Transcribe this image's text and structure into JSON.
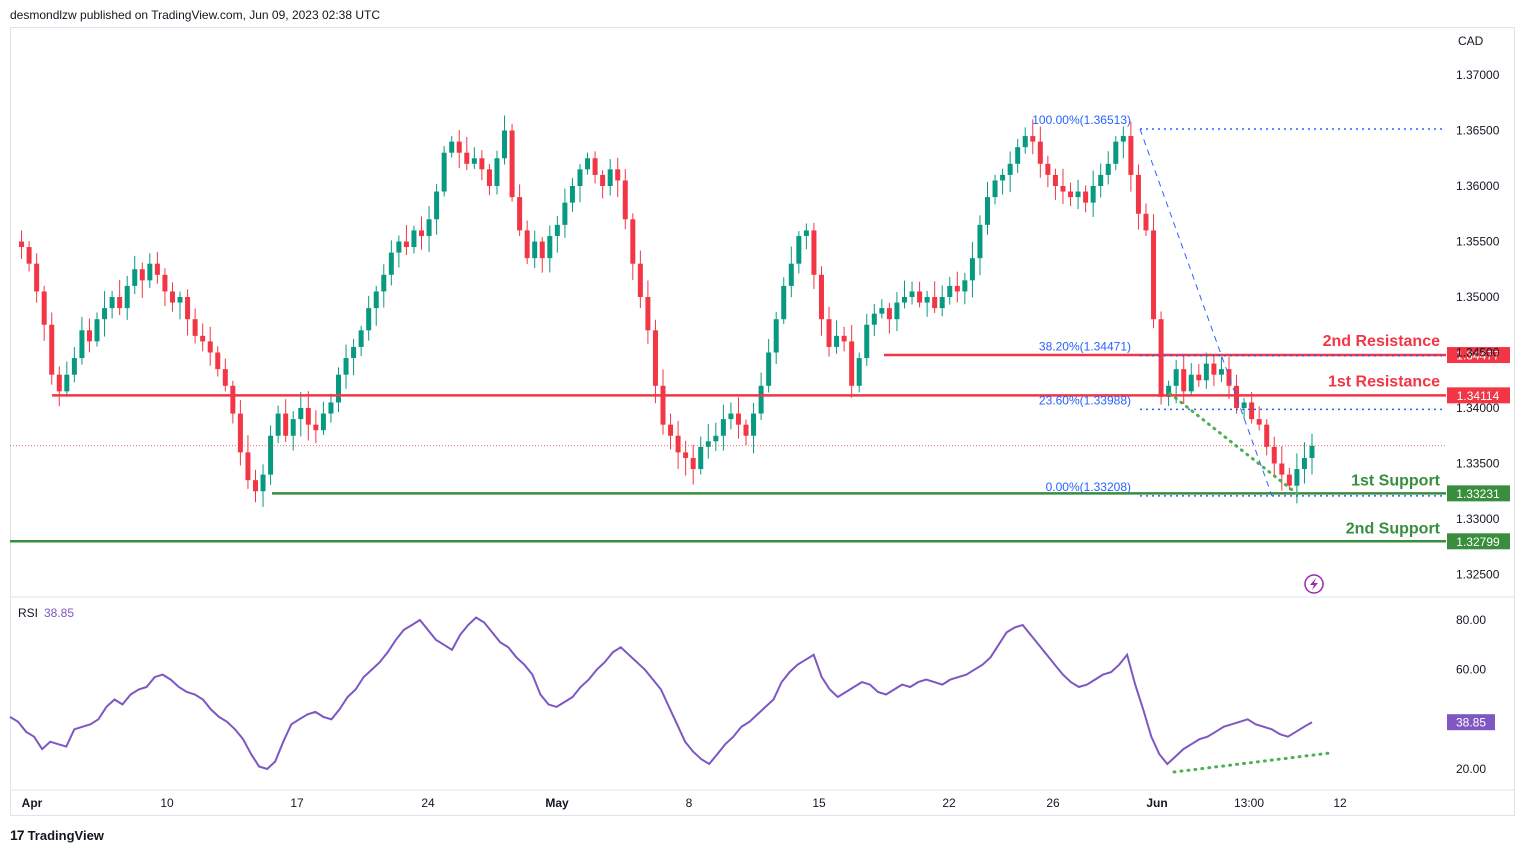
{
  "header": {
    "publish_text": "desmondlzw published on TradingView.com, Jun 09, 2023 02:38 UTC"
  },
  "footer": {
    "logo_text": "TradingView"
  },
  "price_scale": {
    "currency": "CAD",
    "ticks": [
      "1.37000",
      "1.36500",
      "1.36000",
      "1.35500",
      "1.35000",
      "1.34500",
      "1.34000",
      "1.33500",
      "1.33000",
      "1.32500"
    ]
  },
  "levels": {
    "r2": {
      "label": "2nd Resistance",
      "price": 1.34477,
      "tag": "1.34477",
      "color": "#f23645"
    },
    "r1": {
      "label": "1st Resistance",
      "price": 1.34114,
      "tag": "1.34114",
      "color": "#f23645"
    },
    "s1": {
      "label": "1st Support",
      "price": 1.33231,
      "tag": "1.33231",
      "color": "#388e3c"
    },
    "s2": {
      "label": "2nd Support",
      "price": 1.32799,
      "tag": "1.32799",
      "color": "#388e3c"
    }
  },
  "fib": {
    "color": "#2962ff",
    "levels": [
      {
        "label": "100.00%(1.36513)",
        "price": 1.36513
      },
      {
        "label": "38.20%(1.34471)",
        "price": 1.34471
      },
      {
        "label": "23.60%(1.33988)",
        "price": 1.33988
      },
      {
        "label": "0.00%(1.33208)",
        "price": 1.33208
      }
    ]
  },
  "rsi": {
    "label": "RSI",
    "value": "38.85",
    "value_num": 38.85,
    "color": "#7e57c2",
    "ticks": [
      "80.00",
      "60.00",
      "20.00"
    ]
  },
  "time_axis": [
    "Apr",
    "10",
    "17",
    "24",
    "May",
    "8",
    "15",
    "22",
    "26",
    "Jun",
    "13:00",
    "12"
  ],
  "chart_data": {
    "type": "candlestick",
    "symbol_quote": "CAD",
    "ylim": [
      1.3225,
      1.3725
    ],
    "x_labels": [
      "Apr",
      "10",
      "17",
      "24",
      "May",
      "8",
      "15",
      "22",
      "26",
      "Jun",
      "13:00",
      "12"
    ],
    "support_resistance": {
      "r2": 1.34477,
      "r1": 1.34114,
      "s1": 1.33231,
      "s2": 1.32799
    },
    "fibonacci": {
      "100.00%": 1.36513,
      "38.20%": 1.34471,
      "23.60%": 1.33988,
      "0.00%": 1.33208
    },
    "last_price": 1.3366,
    "price_path": [
      1.355,
      1.3545,
      1.353,
      1.3505,
      1.3475,
      1.343,
      1.3415,
      1.343,
      1.3445,
      1.347,
      1.346,
      1.348,
      1.349,
      1.35,
      1.349,
      1.351,
      1.3525,
      1.3515,
      1.353,
      1.352,
      1.3505,
      1.3495,
      1.35,
      1.348,
      1.3465,
      1.346,
      1.345,
      1.3435,
      1.342,
      1.3395,
      1.336,
      1.3335,
      1.3325,
      1.334,
      1.3375,
      1.3395,
      1.3375,
      1.339,
      1.34,
      1.3385,
      1.338,
      1.3395,
      1.3405,
      1.343,
      1.3445,
      1.3455,
      1.347,
      1.349,
      1.3505,
      1.352,
      1.354,
      1.355,
      1.3545,
      1.356,
      1.3555,
      1.357,
      1.3595,
      1.363,
      1.364,
      1.363,
      1.362,
      1.3625,
      1.3615,
      1.36,
      1.3625,
      1.365,
      1.359,
      1.356,
      1.3535,
      1.355,
      1.3535,
      1.3555,
      1.3565,
      1.3585,
      1.36,
      1.3615,
      1.3625,
      1.361,
      1.36,
      1.3615,
      1.3605,
      1.357,
      1.353,
      1.35,
      1.347,
      1.342,
      1.3385,
      1.3375,
      1.336,
      1.3355,
      1.3345,
      1.3365,
      1.337,
      1.3375,
      1.339,
      1.3395,
      1.3385,
      1.3375,
      1.3395,
      1.342,
      1.345,
      1.348,
      1.351,
      1.353,
      1.3555,
      1.356,
      1.352,
      1.348,
      1.3455,
      1.3465,
      1.346,
      1.342,
      1.3445,
      1.3475,
      1.3485,
      1.349,
      1.348,
      1.3495,
      1.35,
      1.3505,
      1.3495,
      1.35,
      1.349,
      1.35,
      1.351,
      1.3505,
      1.3515,
      1.3535,
      1.3565,
      1.359,
      1.3605,
      1.361,
      1.362,
      1.3635,
      1.3645,
      1.364,
      1.362,
      1.361,
      1.36,
      1.3595,
      1.359,
      1.3595,
      1.3585,
      1.36,
      1.361,
      1.362,
      1.364,
      1.3645,
      1.361,
      1.3575,
      1.356,
      1.348,
      1.341,
      1.342,
      1.3435,
      1.3415,
      1.343,
      1.3425,
      1.344,
      1.343,
      1.3435,
      1.342,
      1.34,
      1.3405,
      1.339,
      1.3385,
      1.3365,
      1.335,
      1.334,
      1.333,
      1.3345,
      1.3355,
      1.3366
    ],
    "rsi_path": [
      41,
      39,
      35,
      33,
      28,
      31,
      30,
      29,
      36,
      37,
      38,
      40,
      45,
      48,
      46,
      50,
      52,
      53,
      57,
      58,
      56,
      53,
      51,
      50,
      48,
      44,
      41,
      39,
      36,
      32,
      26,
      21,
      20,
      23,
      31,
      38,
      40,
      42,
      43,
      41,
      40,
      44,
      49,
      52,
      57,
      60,
      63,
      67,
      72,
      76,
      78,
      80,
      76,
      72,
      70,
      68,
      74,
      78,
      81,
      79,
      75,
      71,
      69,
      65,
      62,
      58,
      50,
      46,
      45,
      47,
      49,
      53,
      56,
      60,
      63,
      67,
      69,
      66,
      63,
      60,
      56,
      52,
      45,
      38,
      31,
      27,
      24,
      22,
      26,
      30,
      33,
      37,
      39,
      42,
      45,
      48,
      55,
      59,
      62,
      64,
      66,
      57,
      52,
      49,
      51,
      53,
      55,
      54,
      51,
      50,
      52,
      54,
      53,
      55,
      56,
      55,
      54,
      56,
      57,
      58,
      60,
      62,
      65,
      70,
      75,
      77,
      78,
      74,
      70,
      66,
      62,
      58,
      55,
      53,
      54,
      56,
      58,
      59,
      62,
      66,
      54,
      44,
      33,
      26,
      22,
      25,
      28,
      30,
      32,
      33,
      35,
      37,
      38,
      39,
      40,
      38,
      37,
      36,
      34,
      33,
      35,
      37,
      38.85
    ]
  }
}
